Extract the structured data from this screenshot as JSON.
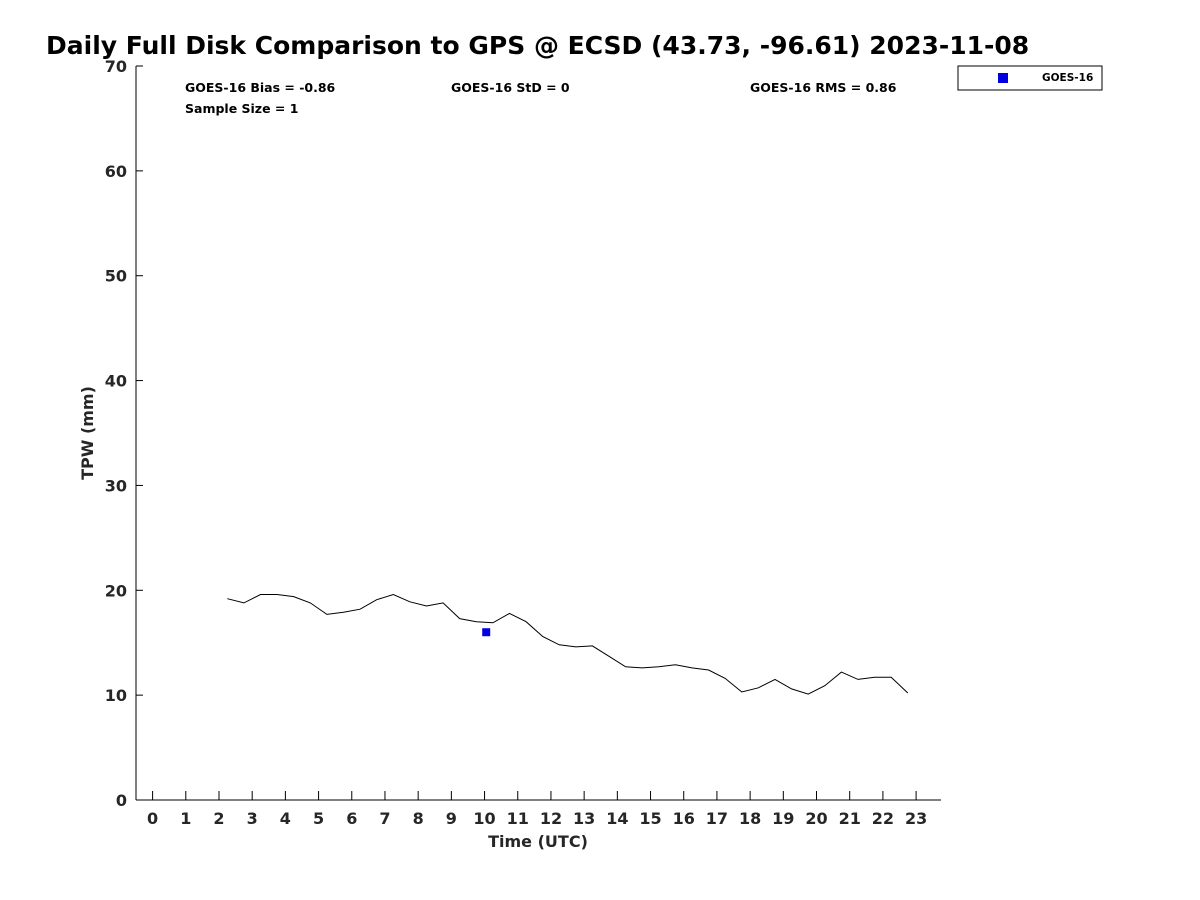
{
  "chart_data": {
    "type": "line",
    "title": "Daily Full Disk Comparison to GPS @ ECSD (43.73, -96.61) 2023-11-08",
    "xlabel": "Time (UTC)",
    "ylabel": "TPW (mm)",
    "xlim": [
      -0.5,
      23.75
    ],
    "ylim": [
      0,
      70
    ],
    "xticks": [
      0,
      1,
      2,
      3,
      4,
      5,
      6,
      7,
      8,
      9,
      10,
      11,
      12,
      13,
      14,
      15,
      16,
      17,
      18,
      19,
      20,
      21,
      22,
      23
    ],
    "yticks": [
      0,
      10,
      20,
      30,
      40,
      50,
      60,
      70
    ],
    "grid": false,
    "legend_placement": "top-right",
    "stats": {
      "bias": "GOES-16 Bias = -0.86",
      "std": "GOES-16 StD = 0",
      "rms": "GOES-16 RMS = 0.86",
      "sample_size": "Sample Size = 1"
    },
    "legend": [
      {
        "label": "GOES-16",
        "color": "#0000e0",
        "marker": "square"
      }
    ],
    "series": [
      {
        "kind": "line",
        "color": "#000000",
        "x": [
          2.25,
          2.75,
          3.25,
          3.75,
          4.25,
          4.75,
          5.25,
          5.75,
          6.25,
          6.75,
          7.25,
          7.75,
          8.25,
          8.75,
          9.25,
          9.75,
          10.25,
          10.75,
          11.25,
          11.75,
          12.25,
          12.75,
          13.25,
          13.75,
          14.25,
          14.75,
          15.25,
          15.75,
          16.25,
          16.75,
          17.25,
          17.75,
          18.25,
          18.75,
          19.25,
          19.75,
          20.25,
          20.75,
          21.25,
          21.75,
          22.25,
          22.75
        ],
        "y": [
          19.2,
          18.8,
          19.6,
          19.6,
          19.4,
          18.8,
          17.7,
          17.9,
          18.2,
          19.1,
          19.6,
          18.9,
          18.5,
          18.8,
          17.3,
          17.0,
          16.9,
          17.8,
          17.0,
          15.6,
          14.8,
          14.6,
          14.7,
          13.7,
          12.7,
          12.6,
          12.7,
          12.9,
          12.6,
          12.4,
          11.6,
          10.3,
          10.7,
          11.5,
          10.6,
          10.1,
          10.9,
          12.2,
          11.5,
          11.7,
          11.7,
          10.2
        ]
      },
      {
        "kind": "scatter",
        "name": "GOES-16",
        "color": "#0000e0",
        "marker": "square",
        "x": [
          10.05
        ],
        "y": [
          16.0
        ]
      }
    ]
  }
}
